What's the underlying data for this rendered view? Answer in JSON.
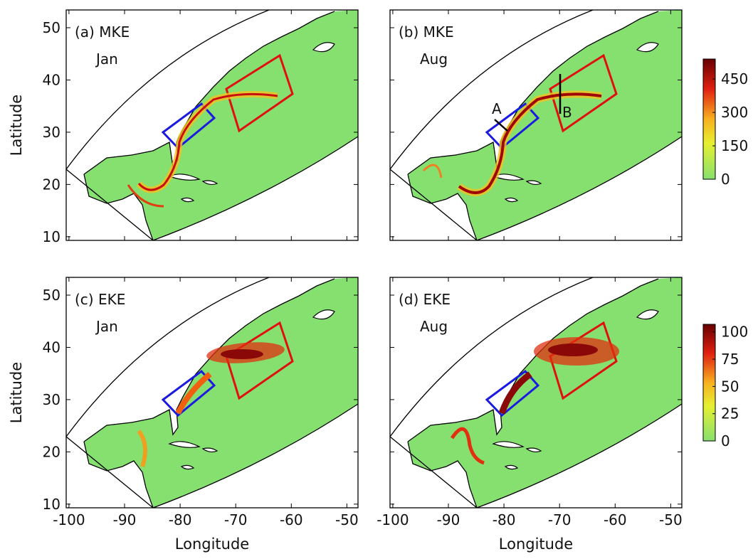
{
  "panels": [
    {
      "quantity": "(a) MKE",
      "month": "Jan"
    },
    {
      "quantity": "(b) MKE",
      "month": "Aug"
    },
    {
      "quantity": "(c) EKE",
      "month": "Jan"
    },
    {
      "quantity": "(d) EKE",
      "month": "Aug"
    }
  ],
  "axes": {
    "xlabel": "Longitude",
    "ylabel": "Latitude",
    "xlim": [
      -100.5,
      -48
    ],
    "ylim": [
      9.3,
      53.4
    ],
    "xticks": [
      -100,
      -90,
      -80,
      -70,
      -60,
      -50
    ],
    "yticks": [
      10,
      20,
      30,
      40,
      50
    ]
  },
  "colorbars": [
    {
      "lim": [
        0,
        540
      ],
      "ticks": [
        0,
        150,
        300,
        450
      ]
    },
    {
      "lim": [
        0,
        107
      ],
      "ticks": [
        0,
        25,
        50,
        75,
        100
      ]
    }
  ],
  "section_labels": [
    "A",
    "B"
  ]
}
